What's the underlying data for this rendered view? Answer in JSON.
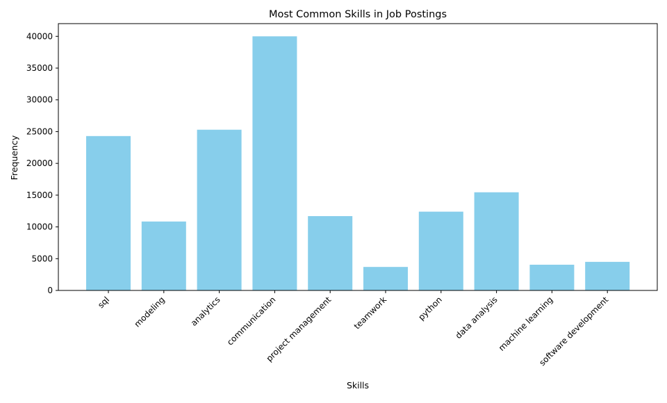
{
  "chart_data": {
    "type": "bar",
    "title": "Most Common Skills in Job Postings",
    "xlabel": "Skills",
    "ylabel": "Frequency",
    "categories": [
      "sql",
      "modeling",
      "analytics",
      "communication",
      "project management",
      "teamwork",
      "python",
      "data analysis",
      "machine learning",
      "software development"
    ],
    "values": [
      24300,
      10850,
      25300,
      40000,
      11700,
      3700,
      12400,
      15450,
      4050,
      4500
    ],
    "ylim": [
      0,
      42000
    ],
    "yticks": [
      0,
      5000,
      10000,
      15000,
      20000,
      25000,
      30000,
      35000,
      40000
    ],
    "bar_color": "#87ceeb",
    "grid": false
  }
}
